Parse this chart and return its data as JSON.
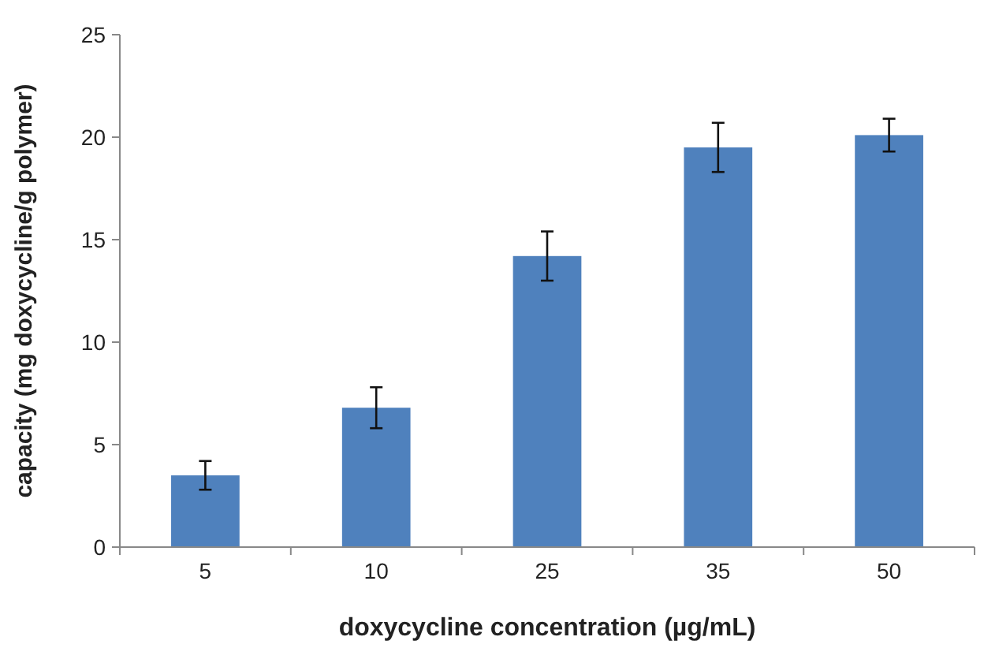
{
  "chart_data": {
    "type": "bar",
    "xlabel": "doxycycline concentration (µg/mL)",
    "ylabel": "capacity (mg doxycycline/g polymer)",
    "categories": [
      "5",
      "10",
      "25",
      "35",
      "50"
    ],
    "values": [
      3.5,
      6.8,
      14.2,
      19.5,
      20.1
    ],
    "errors": [
      0.7,
      1.0,
      1.2,
      1.2,
      0.8
    ],
    "color": "#4f81bd",
    "ylim": [
      0,
      25
    ],
    "yticks": [
      0,
      5,
      10,
      15,
      20,
      25
    ]
  }
}
